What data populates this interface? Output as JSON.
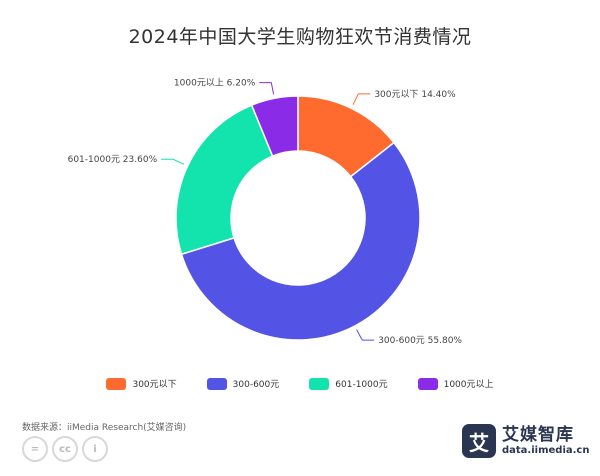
{
  "title": "2024年中国大学生购物狂欢节消费情况",
  "chart_data": {
    "type": "pie",
    "title": "2024年中国大学生购物狂欢节消费情况",
    "donut": true,
    "legend_position": "bottom",
    "slices": [
      {
        "label": "300元以下",
        "value": 14.4,
        "display": "300元以下 14.40%",
        "color": "#ff6a2e"
      },
      {
        "label": "300-600元",
        "value": 55.8,
        "display": "300-600元 55.80%",
        "color": "#5353e6"
      },
      {
        "label": "601-1000元",
        "value": 23.6,
        "display": "601-1000元 23.60%",
        "color": "#13e3ad"
      },
      {
        "label": "1000元以上",
        "value": 6.2,
        "display": "1000元以上 6.20%",
        "color": "#8a2be8"
      }
    ]
  },
  "footer": {
    "source": "数据来源：iiMedia Research(艾媒咨询)",
    "cc_icons": [
      "=",
      "cc",
      "i"
    ]
  },
  "brand": {
    "logo_char": "艾",
    "name": "艾媒智库",
    "url": "data.iimedia.cn"
  }
}
